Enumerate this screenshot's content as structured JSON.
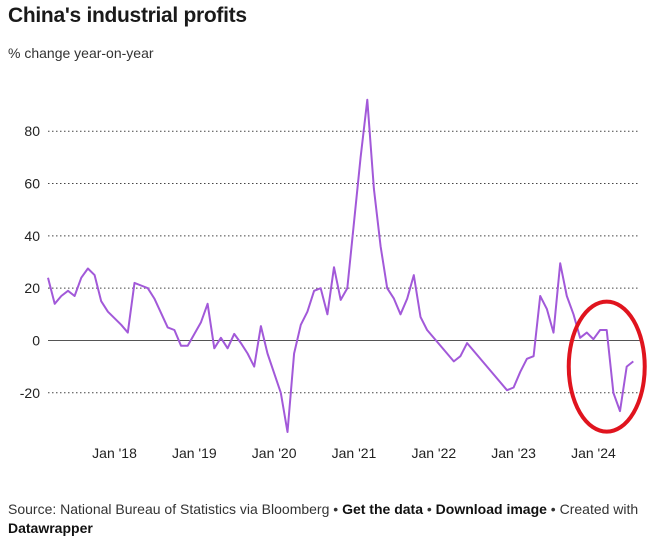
{
  "chart_data": {
    "type": "line",
    "title": "China's industrial profits",
    "subtitle": "% change year-on-year",
    "ylim": [
      -35,
      95
    ],
    "yticks": [
      -20,
      0,
      20,
      40,
      60,
      80
    ],
    "xlim": [
      "2017-03",
      "2024-08"
    ],
    "xticks": [
      {
        "label": "Jan '18",
        "x": "2018-01"
      },
      {
        "label": "Jan '19",
        "x": "2019-01"
      },
      {
        "label": "Jan '20",
        "x": "2020-01"
      },
      {
        "label": "Jan '21",
        "x": "2021-01"
      },
      {
        "label": "Jan '22",
        "x": "2022-01"
      },
      {
        "label": "Jan '23",
        "x": "2023-01"
      },
      {
        "label": "Jan '24",
        "x": "2024-01"
      }
    ],
    "grid": true,
    "series": [
      {
        "color": "#a259d9",
        "points": [
          [
            "2017-03",
            24
          ],
          [
            "2017-04",
            14
          ],
          [
            "2017-05",
            17
          ],
          [
            "2017-06",
            19
          ],
          [
            "2017-07",
            17
          ],
          [
            "2017-08",
            24
          ],
          [
            "2017-09",
            27.5
          ],
          [
            "2017-10",
            25
          ],
          [
            "2017-11",
            15
          ],
          [
            "2017-12",
            11
          ],
          [
            "2018-02",
            6
          ],
          [
            "2018-03",
            3
          ],
          [
            "2018-04",
            22
          ],
          [
            "2018-05",
            21
          ],
          [
            "2018-06",
            20
          ],
          [
            "2018-07",
            16
          ],
          [
            "2018-09",
            5
          ],
          [
            "2018-10",
            4
          ],
          [
            "2018-11",
            -2
          ],
          [
            "2018-12",
            -2
          ],
          [
            "2019-02",
            7
          ],
          [
            "2019-03",
            14
          ],
          [
            "2019-04",
            -3
          ],
          [
            "2019-05",
            1
          ],
          [
            "2019-06",
            -3
          ],
          [
            "2019-07",
            2.5
          ],
          [
            "2019-08",
            -1
          ],
          [
            "2019-09",
            -5
          ],
          [
            "2019-10",
            -10
          ],
          [
            "2019-11",
            5.5
          ],
          [
            "2019-12",
            -5
          ],
          [
            "2020-02",
            -20
          ],
          [
            "2020-03",
            -35
          ],
          [
            "2020-04",
            -5
          ],
          [
            "2020-05",
            6
          ],
          [
            "2020-06",
            11
          ],
          [
            "2020-07",
            19
          ],
          [
            "2020-08",
            20
          ],
          [
            "2020-09",
            10
          ],
          [
            "2020-10",
            28
          ],
          [
            "2020-11",
            15.5
          ],
          [
            "2020-12",
            20
          ],
          [
            "2021-02",
            70
          ],
          [
            "2021-03",
            92
          ],
          [
            "2021-04",
            58
          ],
          [
            "2021-05",
            36
          ],
          [
            "2021-06",
            20
          ],
          [
            "2021-07",
            16
          ],
          [
            "2021-08",
            10
          ],
          [
            "2021-09",
            16
          ],
          [
            "2021-10",
            25
          ],
          [
            "2021-11",
            9
          ],
          [
            "2021-12",
            4
          ],
          [
            "2022-04",
            -8
          ],
          [
            "2022-05",
            -6
          ],
          [
            "2022-06",
            -1
          ],
          [
            "2022-12",
            -19
          ],
          [
            "2023-01",
            -18
          ],
          [
            "2023-02",
            -12
          ],
          [
            "2023-03",
            -7
          ],
          [
            "2023-04",
            -6
          ],
          [
            "2023-05",
            17
          ],
          [
            "2023-06",
            12
          ],
          [
            "2023-07",
            3
          ],
          [
            "2023-08",
            29.5
          ],
          [
            "2023-09",
            17
          ],
          [
            "2023-10",
            10
          ],
          [
            "2023-11",
            1
          ],
          [
            "2023-12",
            3
          ],
          [
            "2024-01",
            0.5
          ],
          [
            "2024-02",
            4
          ],
          [
            "2024-03",
            4
          ],
          [
            "2024-04",
            -20
          ],
          [
            "2024-05",
            -27
          ],
          [
            "2024-06",
            -10
          ],
          [
            "2024-07",
            -8
          ]
        ]
      }
    ],
    "annotations": [
      {
        "type": "ellipse",
        "color": "#e0141e",
        "center": [
          "2024-03",
          -10
        ]
      }
    ]
  },
  "footer": {
    "source": "Source: National Bureau of Statistics via Bloomberg",
    "sep": " • ",
    "get_data": "Get the data",
    "download": "Download image",
    "created_prefix": "Created with",
    "created_tool": "Datawrapper"
  }
}
